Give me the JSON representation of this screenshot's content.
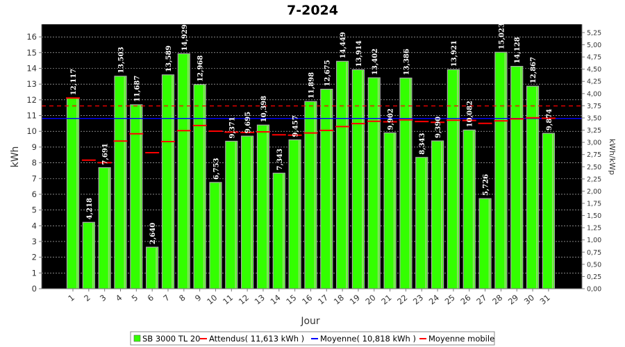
{
  "chart_data": {
    "type": "bar",
    "title": "7-2024",
    "xlabel": "Jour",
    "ylabel": "kWh",
    "y2label": "kWh/kWp",
    "ylim": [
      0,
      16.8
    ],
    "y2lim": [
      0,
      5.42
    ],
    "yticks": [
      "0",
      "1",
      "2",
      "3",
      "4",
      "5",
      "6",
      "7",
      "8",
      "9",
      "10",
      "11",
      "12",
      "13",
      "14",
      "15",
      "16"
    ],
    "y2ticks": [
      "0,00",
      "0,25",
      "0,50",
      "0,75",
      "1,00",
      "1,25",
      "1,50",
      "1,75",
      "2,00",
      "2,25",
      "2,50",
      "2,75",
      "3,00",
      "3,25",
      "3,50",
      "3,75",
      "4,00",
      "4,25",
      "4,50",
      "4,75",
      "5,00",
      "5,25"
    ],
    "categories": [
      "1",
      "2",
      "3",
      "4",
      "5",
      "6",
      "7",
      "8",
      "9",
      "10",
      "11",
      "12",
      "13",
      "14",
      "15",
      "16",
      "17",
      "18",
      "19",
      "20",
      "21",
      "22",
      "23",
      "24",
      "25",
      "26",
      "27",
      "28",
      "29",
      "30",
      "31"
    ],
    "series": [
      {
        "name": "SB 3000 TL 20",
        "color": "#33ff00",
        "values": [
          12.117,
          4.218,
          7.691,
          13.503,
          11.687,
          2.64,
          13.589,
          14.929,
          12.968,
          6.753,
          9.371,
          9.695,
          10.398,
          7.343,
          9.457,
          11.898,
          12.675,
          14.449,
          13.914,
          13.402,
          9.902,
          13.386,
          8.343,
          9.39,
          13.921,
          10.082,
          5.726,
          15.023,
          14.128,
          12.867,
          9.874
        ],
        "labels": [
          "12,117",
          "4,218",
          "7,691",
          "13,503",
          "11,687",
          "2,640",
          "13,589",
          "14,929",
          "12,968",
          "6,753",
          "9,371",
          "9,695",
          "10,398",
          "7,343",
          "9,457",
          "11,898",
          "12,675",
          "14,449",
          "13,914",
          "13,402",
          "9,902",
          "13,386",
          "8,343",
          "9,390",
          "13,921",
          "10,082",
          "5,726",
          "15,023",
          "14,128",
          "12,867",
          "9,874"
        ]
      },
      {
        "name": "Moyenne mobile",
        "color": "#ff0000",
        "values": [
          12.117,
          8.168,
          8.009,
          9.382,
          9.843,
          8.641,
          9.347,
          10.044,
          10.369,
          10.008,
          9.95,
          9.929,
          9.965,
          9.778,
          9.757,
          9.891,
          10.057,
          10.301,
          10.491,
          10.637,
          10.602,
          10.728,
          10.624,
          10.572,
          10.706,
          10.687,
          10.503,
          10.665,
          10.788,
          10.86,
          10.828
        ]
      }
    ],
    "reference_lines": [
      {
        "name": "Attendus( 11,613 kWh )",
        "value": 11.613,
        "color": "#ff0000",
        "style": "dashed"
      },
      {
        "name": "Moyenne( 10,818 kWh )",
        "value": 10.818,
        "color": "#0000ff",
        "style": "solid"
      }
    ],
    "legend_position": "bottom",
    "grid": true
  }
}
